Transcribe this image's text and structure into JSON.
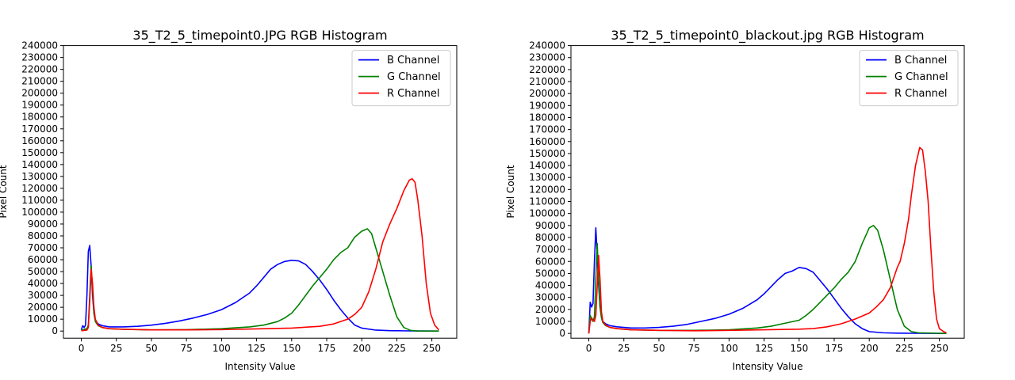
{
  "chart_data": [
    {
      "type": "line",
      "title": "35_T2_5_timepoint0.JPG RGB Histogram",
      "xlabel": "Intensity Value",
      "ylabel": "Pixel Count",
      "xlim": [
        -12.75,
        267.75
      ],
      "ylim": [
        -6000,
        240000
      ],
      "xticks": [
        0,
        25,
        50,
        75,
        100,
        125,
        150,
        175,
        200,
        225,
        250
      ],
      "yticks": [
        0,
        10000,
        20000,
        30000,
        40000,
        50000,
        60000,
        70000,
        80000,
        90000,
        100000,
        110000,
        120000,
        130000,
        140000,
        150000,
        160000,
        170000,
        180000,
        190000,
        200000,
        210000,
        220000,
        230000,
        240000
      ],
      "legend": "top-right",
      "grid": false,
      "series": [
        {
          "name": "B Channel",
          "color": "#0000ff",
          "points": [
            [
              0,
              1000
            ],
            [
              1,
              4500
            ],
            [
              2,
              3000
            ],
            [
              3,
              5000
            ],
            [
              4,
              30000
            ],
            [
              5,
              67000
            ],
            [
              6,
              72000
            ],
            [
              7,
              55000
            ],
            [
              8,
              30000
            ],
            [
              9,
              15000
            ],
            [
              10,
              9000
            ],
            [
              12,
              6000
            ],
            [
              15,
              4500
            ],
            [
              20,
              3500
            ],
            [
              25,
              3500
            ],
            [
              30,
              3500
            ],
            [
              40,
              4000
            ],
            [
              50,
              5000
            ],
            [
              60,
              6500
            ],
            [
              70,
              8500
            ],
            [
              80,
              11000
            ],
            [
              90,
              14000
            ],
            [
              100,
              18000
            ],
            [
              110,
              24000
            ],
            [
              120,
              32000
            ],
            [
              125,
              38000
            ],
            [
              130,
              45000
            ],
            [
              135,
              52000
            ],
            [
              140,
              56000
            ],
            [
              145,
              58500
            ],
            [
              150,
              59500
            ],
            [
              155,
              59000
            ],
            [
              160,
              56000
            ],
            [
              165,
              50000
            ],
            [
              170,
              43000
            ],
            [
              175,
              35000
            ],
            [
              180,
              26000
            ],
            [
              185,
              18000
            ],
            [
              190,
              11000
            ],
            [
              195,
              5000
            ],
            [
              200,
              2500
            ],
            [
              210,
              800
            ],
            [
              220,
              300
            ],
            [
              230,
              200
            ],
            [
              240,
              100
            ],
            [
              255,
              0
            ]
          ]
        },
        {
          "name": "G Channel",
          "color": "#008000",
          "points": [
            [
              0,
              500
            ],
            [
              2,
              1500
            ],
            [
              4,
              2000
            ],
            [
              5,
              5000
            ],
            [
              6,
              30000
            ],
            [
              7,
              55000
            ],
            [
              8,
              35000
            ],
            [
              9,
              15000
            ],
            [
              10,
              8000
            ],
            [
              12,
              4500
            ],
            [
              15,
              3000
            ],
            [
              20,
              2000
            ],
            [
              30,
              1500
            ],
            [
              50,
              1000
            ],
            [
              75,
              1200
            ],
            [
              100,
              2000
            ],
            [
              120,
              3500
            ],
            [
              130,
              5000
            ],
            [
              140,
              8000
            ],
            [
              145,
              11000
            ],
            [
              150,
              15000
            ],
            [
              155,
              22000
            ],
            [
              160,
              30000
            ],
            [
              165,
              38000
            ],
            [
              170,
              45000
            ],
            [
              175,
              52000
            ],
            [
              180,
              60000
            ],
            [
              185,
              66000
            ],
            [
              190,
              70000
            ],
            [
              195,
              79000
            ],
            [
              200,
              84000
            ],
            [
              204,
              86000
            ],
            [
              207,
              82000
            ],
            [
              210,
              70000
            ],
            [
              215,
              50000
            ],
            [
              220,
              30000
            ],
            [
              225,
              12000
            ],
            [
              230,
              3000
            ],
            [
              235,
              500
            ],
            [
              240,
              100
            ],
            [
              255,
              0
            ]
          ]
        },
        {
          "name": "R Channel",
          "color": "#ff0000",
          "points": [
            [
              0,
              200
            ],
            [
              4,
              800
            ],
            [
              5,
              3000
            ],
            [
              6,
              25000
            ],
            [
              7,
              52000
            ],
            [
              8,
              40000
            ],
            [
              9,
              20000
            ],
            [
              10,
              10000
            ],
            [
              12,
              5000
            ],
            [
              15,
              3000
            ],
            [
              20,
              2000
            ],
            [
              30,
              1500
            ],
            [
              50,
              1000
            ],
            [
              75,
              1000
            ],
            [
              100,
              1200
            ],
            [
              125,
              1800
            ],
            [
              150,
              2500
            ],
            [
              170,
              4000
            ],
            [
              180,
              6000
            ],
            [
              190,
              10000
            ],
            [
              195,
              14000
            ],
            [
              200,
              20000
            ],
            [
              205,
              33000
            ],
            [
              210,
              52000
            ],
            [
              215,
              75000
            ],
            [
              220,
              90000
            ],
            [
              225,
              103000
            ],
            [
              230,
              118000
            ],
            [
              234,
              127000
            ],
            [
              236,
              128000
            ],
            [
              238,
              125000
            ],
            [
              240,
              110000
            ],
            [
              243,
              80000
            ],
            [
              246,
              40000
            ],
            [
              249,
              15000
            ],
            [
              252,
              5000
            ],
            [
              255,
              1000
            ]
          ]
        }
      ]
    },
    {
      "type": "line",
      "title": "35_T2_5_timepoint0_blackout.jpg RGB Histogram",
      "xlabel": "Intensity Value",
      "ylabel": "Pixel Count",
      "xlim": [
        -12.75,
        267.75
      ],
      "ylim": [
        -4000,
        240000
      ],
      "xticks": [
        0,
        25,
        50,
        75,
        100,
        125,
        150,
        175,
        200,
        225,
        250
      ],
      "yticks": [
        0,
        10000,
        20000,
        30000,
        40000,
        50000,
        60000,
        70000,
        80000,
        90000,
        100000,
        110000,
        120000,
        130000,
        140000,
        150000,
        160000,
        170000,
        180000,
        190000,
        200000,
        210000,
        220000,
        230000,
        240000
      ],
      "legend": "top-right",
      "grid": false,
      "series": [
        {
          "name": "B Channel",
          "color": "#0000ff",
          "points": [
            [
              0,
              0
            ],
            [
              1,
              26000
            ],
            [
              2,
              22000
            ],
            [
              3,
              25000
            ],
            [
              4,
              60000
            ],
            [
              5,
              88000
            ],
            [
              6,
              65000
            ],
            [
              7,
              40000
            ],
            [
              8,
              22000
            ],
            [
              9,
              14000
            ],
            [
              10,
              10000
            ],
            [
              12,
              8000
            ],
            [
              15,
              6500
            ],
            [
              20,
              5500
            ],
            [
              25,
              5000
            ],
            [
              30,
              4500
            ],
            [
              40,
              4500
            ],
            [
              50,
              5000
            ],
            [
              60,
              6000
            ],
            [
              70,
              7500
            ],
            [
              80,
              10000
            ],
            [
              90,
              12500
            ],
            [
              100,
              16000
            ],
            [
              110,
              21000
            ],
            [
              120,
              28000
            ],
            [
              125,
              33000
            ],
            [
              130,
              39000
            ],
            [
              135,
              45000
            ],
            [
              140,
              50000
            ],
            [
              145,
              52000
            ],
            [
              150,
              55000
            ],
            [
              155,
              54000
            ],
            [
              160,
              51000
            ],
            [
              165,
              44000
            ],
            [
              170,
              37000
            ],
            [
              175,
              29000
            ],
            [
              180,
              21000
            ],
            [
              185,
              14000
            ],
            [
              190,
              8000
            ],
            [
              195,
              4000
            ],
            [
              200,
              1500
            ],
            [
              210,
              500
            ],
            [
              220,
              200
            ],
            [
              230,
              100
            ],
            [
              255,
              0
            ]
          ]
        },
        {
          "name": "G Channel",
          "color": "#008000",
          "points": [
            [
              0,
              0
            ],
            [
              1,
              15000
            ],
            [
              2,
              12000
            ],
            [
              3,
              10000
            ],
            [
              4,
              14000
            ],
            [
              5,
              45000
            ],
            [
              6,
              75000
            ],
            [
              7,
              45000
            ],
            [
              8,
              22000
            ],
            [
              9,
              13000
            ],
            [
              10,
              9000
            ],
            [
              12,
              6500
            ],
            [
              15,
              5000
            ],
            [
              20,
              4000
            ],
            [
              30,
              3000
            ],
            [
              50,
              2500
            ],
            [
              75,
              2500
            ],
            [
              100,
              3000
            ],
            [
              120,
              4500
            ],
            [
              130,
              6000
            ],
            [
              140,
              8500
            ],
            [
              150,
              11000
            ],
            [
              155,
              15000
            ],
            [
              160,
              20000
            ],
            [
              165,
              26000
            ],
            [
              170,
              32000
            ],
            [
              175,
              38000
            ],
            [
              180,
              45000
            ],
            [
              185,
              51000
            ],
            [
              190,
              60000
            ],
            [
              195,
              75000
            ],
            [
              200,
              88000
            ],
            [
              203,
              90000
            ],
            [
              206,
              86000
            ],
            [
              210,
              70000
            ],
            [
              215,
              45000
            ],
            [
              220,
              20000
            ],
            [
              225,
              6000
            ],
            [
              230,
              1500
            ],
            [
              235,
              500
            ],
            [
              255,
              0
            ]
          ]
        },
        {
          "name": "R Channel",
          "color": "#ff0000",
          "points": [
            [
              0,
              0
            ],
            [
              1,
              10000
            ],
            [
              2,
              13000
            ],
            [
              3,
              11000
            ],
            [
              4,
              10000
            ],
            [
              5,
              15000
            ],
            [
              6,
              40000
            ],
            [
              7,
              65000
            ],
            [
              8,
              45000
            ],
            [
              9,
              18000
            ],
            [
              10,
              10000
            ],
            [
              12,
              7000
            ],
            [
              15,
              5000
            ],
            [
              20,
              4000
            ],
            [
              30,
              3000
            ],
            [
              50,
              2500
            ],
            [
              75,
              2200
            ],
            [
              100,
              2500
            ],
            [
              125,
              3000
            ],
            [
              150,
              3500
            ],
            [
              160,
              4000
            ],
            [
              170,
              5500
            ],
            [
              180,
              8000
            ],
            [
              190,
              12000
            ],
            [
              200,
              17000
            ],
            [
              205,
              22000
            ],
            [
              210,
              28000
            ],
            [
              215,
              38000
            ],
            [
              220,
              55000
            ],
            [
              222,
              60000
            ],
            [
              225,
              75000
            ],
            [
              228,
              95000
            ],
            [
              230,
              115000
            ],
            [
              233,
              140000
            ],
            [
              236,
              155000
            ],
            [
              238,
              153000
            ],
            [
              240,
              135000
            ],
            [
              242,
              110000
            ],
            [
              244,
              70000
            ],
            [
              246,
              35000
            ],
            [
              248,
              12000
            ],
            [
              250,
              4000
            ],
            [
              253,
              1500
            ],
            [
              255,
              500
            ]
          ]
        }
      ]
    }
  ]
}
